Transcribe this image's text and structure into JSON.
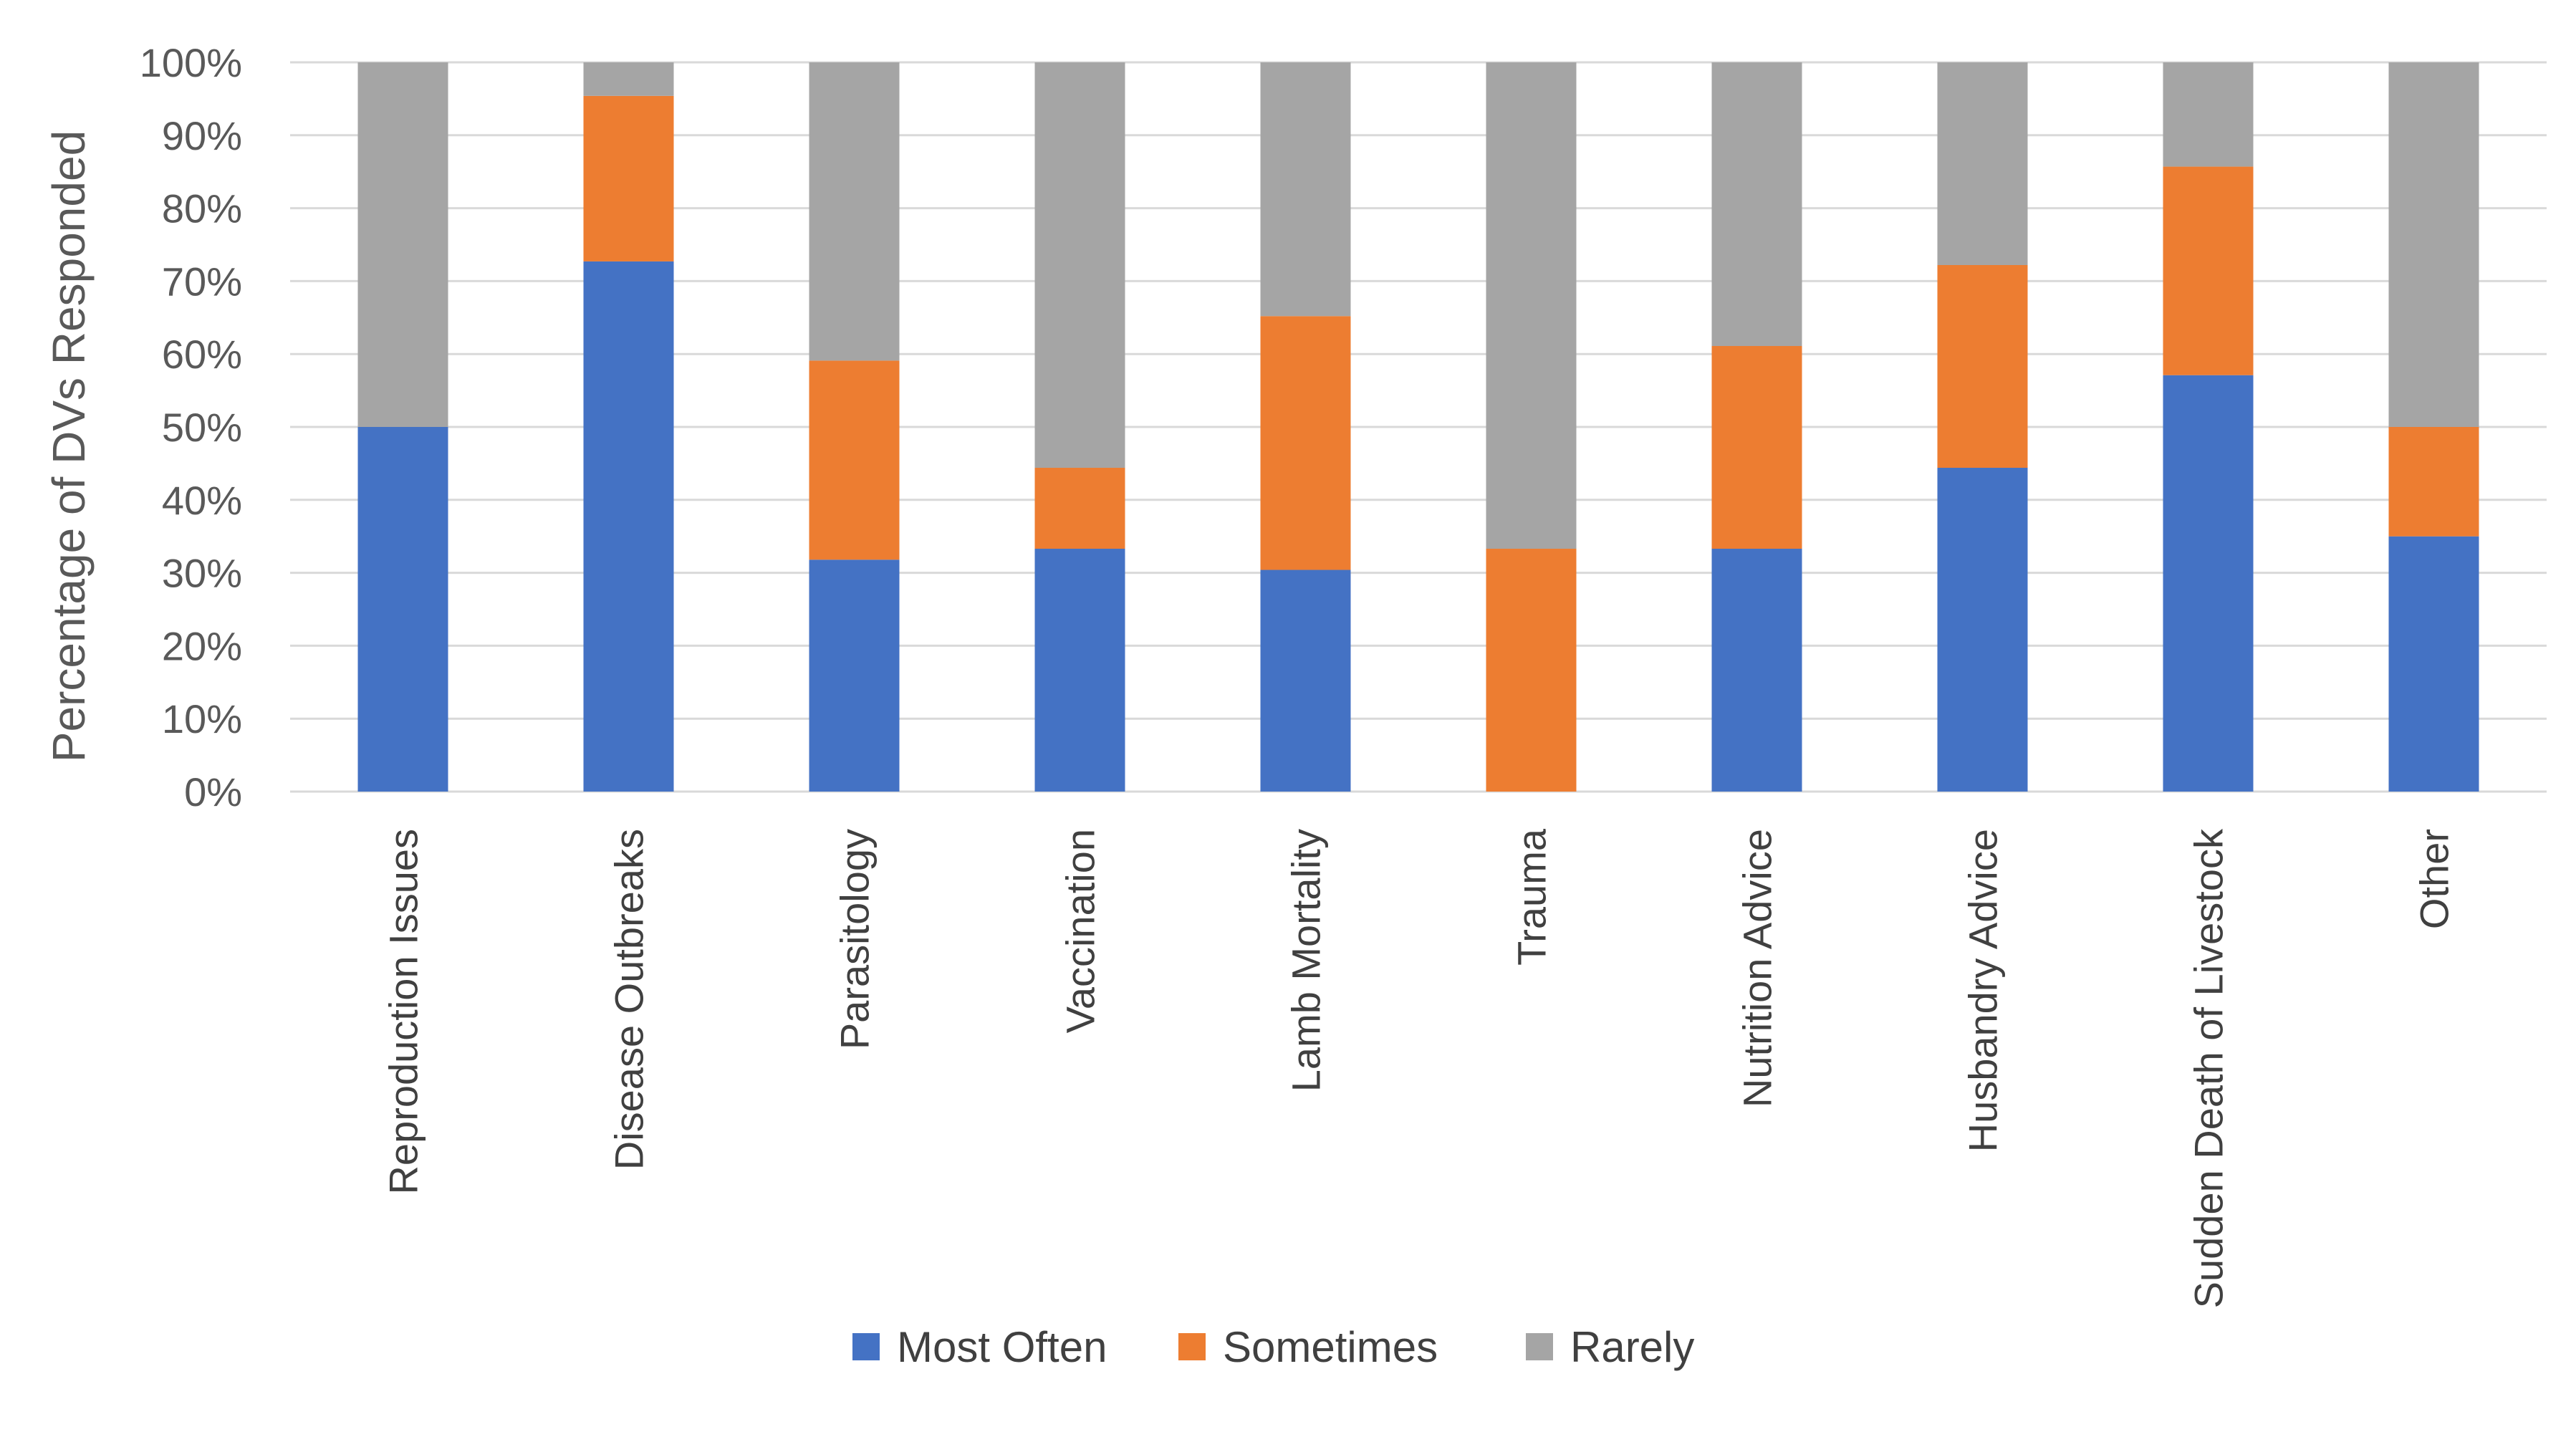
{
  "chart_data": {
    "type": "bar",
    "stacked": true,
    "title": "",
    "xlabel": "",
    "ylabel": "Percentage of DVs Responded",
    "ylim": [
      0,
      100
    ],
    "y_ticks": [
      "0%",
      "10%",
      "20%",
      "30%",
      "40%",
      "50%",
      "60%",
      "70%",
      "80%",
      "90%",
      "100%"
    ],
    "grid": true,
    "legend_position": "bottom",
    "categories": [
      "Reproduction Issues",
      "Disease Outbreaks",
      "Parasitology",
      "Vaccination",
      "Lamb Mortality",
      "Trauma",
      "Nutrition Advice",
      "Husbandry Advice",
      "Sudden Death of Livestock",
      "Other"
    ],
    "series": [
      {
        "name": "Most Often",
        "color": "#4472C4",
        "values": [
          50,
          72.7,
          31.8,
          33.3,
          30.4,
          0,
          33.3,
          44.4,
          57.1,
          35
        ]
      },
      {
        "name": "Sometimes",
        "color": "#ED7D31",
        "values": [
          0,
          22.7,
          27.3,
          11.1,
          34.8,
          33.3,
          27.8,
          27.8,
          28.6,
          15
        ]
      },
      {
        "name": "Rarely",
        "color": "#A5A5A5",
        "values": [
          50,
          4.6,
          40.9,
          55.6,
          34.8,
          66.7,
          38.9,
          27.8,
          14.3,
          50
        ]
      }
    ]
  }
}
